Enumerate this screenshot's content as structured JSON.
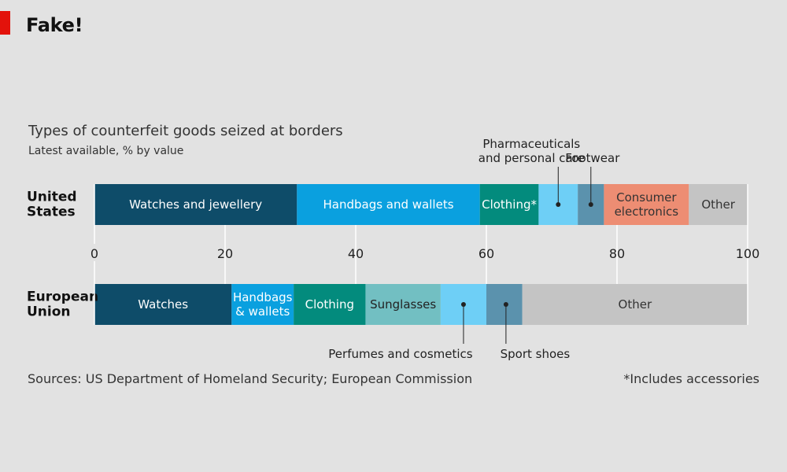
{
  "headline": "Fake!",
  "chart_data": {
    "type": "bar",
    "orientation": "horizontal",
    "stacked": true,
    "title": "Types of counterfeit goods seized at borders",
    "subtitle": "Latest available, % by value",
    "xlim": [
      0,
      100
    ],
    "xticks": [
      0,
      20,
      40,
      60,
      80,
      100
    ],
    "grid": true,
    "rows": [
      {
        "label_lines": [
          "United",
          "States"
        ],
        "segments": [
          {
            "name": "Watches and jewellery",
            "label_lines": [
              "Watches and jewellery"
            ],
            "start": 0,
            "end": 31,
            "color": "#0e4c69",
            "text_color": "#ffffff"
          },
          {
            "name": "Handbags and wallets",
            "label_lines": [
              "Handbags and wallets"
            ],
            "start": 31,
            "end": 59,
            "color": "#0aa0df",
            "text_color": "#ffffff"
          },
          {
            "name": "Clothing*",
            "label_lines": [
              "Clothing*"
            ],
            "start": 59,
            "end": 68,
            "color": "#038b7d",
            "text_color": "#ffffff"
          },
          {
            "name": "Pharmaceuticals and personal care",
            "label_lines": [],
            "start": 68,
            "end": 74,
            "color": "#6ecff6",
            "text_color": "#222222"
          },
          {
            "name": "Footwear",
            "label_lines": [],
            "start": 74,
            "end": 78,
            "color": "#5b92ad",
            "text_color": "#222222"
          },
          {
            "name": "Consumer electronics",
            "label_lines": [
              "Consumer",
              "electronics"
            ],
            "start": 78,
            "end": 91,
            "color": "#ed8d73",
            "text_color": "#333333"
          },
          {
            "name": "Other",
            "label_lines": [
              "Other"
            ],
            "start": 91,
            "end": 100,
            "color": "#c4c4c4",
            "text_color": "#333333"
          }
        ],
        "callouts": [
          {
            "label_lines": [
              "Pharmaceuticals",
              "and personal care"
            ],
            "at": 71,
            "position": "above"
          },
          {
            "label_lines": [
              "Footwear"
            ],
            "at": 76,
            "position": "above"
          }
        ]
      },
      {
        "label_lines": [
          "European",
          "Union"
        ],
        "segments": [
          {
            "name": "Watches",
            "label_lines": [
              "Watches"
            ],
            "start": 0,
            "end": 21,
            "color": "#0e4c69",
            "text_color": "#ffffff"
          },
          {
            "name": "Handbags & wallets",
            "label_lines": [
              "Handbags",
              "& wallets"
            ],
            "start": 21,
            "end": 30.5,
            "color": "#0aa0df",
            "text_color": "#ffffff"
          },
          {
            "name": "Clothing",
            "label_lines": [
              "Clothing"
            ],
            "start": 30.5,
            "end": 41.5,
            "color": "#038b7d",
            "text_color": "#ffffff"
          },
          {
            "name": "Sunglasses",
            "label_lines": [
              "Sunglasses"
            ],
            "start": 41.5,
            "end": 53,
            "color": "#72bfc2",
            "text_color": "#222222"
          },
          {
            "name": "Perfumes and cosmetics",
            "label_lines": [],
            "start": 53,
            "end": 60,
            "color": "#6ecff6",
            "text_color": "#222222"
          },
          {
            "name": "Sport shoes",
            "label_lines": [],
            "start": 60,
            "end": 65.5,
            "color": "#5b92ad",
            "text_color": "#222222"
          },
          {
            "name": "Other",
            "label_lines": [
              "Other"
            ],
            "start": 65.5,
            "end": 100,
            "color": "#c4c4c4",
            "text_color": "#333333"
          }
        ],
        "callouts": [
          {
            "label_lines": [
              "Perfumes and cosmetics"
            ],
            "at": 56.5,
            "position": "below"
          },
          {
            "label_lines": [
              "Sport shoes"
            ],
            "at": 63,
            "position": "below"
          }
        ]
      }
    ]
  },
  "footer": {
    "source": "Sources: US Department of Homeland Security; European Commission",
    "note": "*Includes accessories"
  },
  "colors": {
    "accent": "#e3120b",
    "background": "#e2e2e2",
    "grid": "#ffffff"
  }
}
